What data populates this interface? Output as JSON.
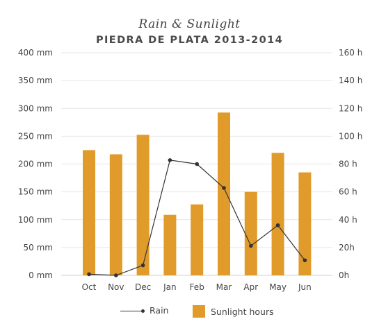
{
  "chart_data": {
    "type": "bar",
    "title": "Rain & Sunlight",
    "subtitle": "PIEDRA DE PLATA 2013-2014",
    "categories": [
      "Oct",
      "Nov",
      "Dec",
      "Jan",
      "Feb",
      "Mar",
      "Apr",
      "May",
      "Jun"
    ],
    "series": [
      {
        "name": "Sunlight hours",
        "kind": "bar",
        "axis": "right",
        "unit": "h",
        "color": "#e09b2b",
        "values": [
          90,
          87,
          101,
          43.5,
          51,
          117,
          60,
          88,
          74
        ]
      },
      {
        "name": "Rain",
        "kind": "line",
        "axis": "left",
        "unit": "mm",
        "color": "#333333",
        "values": [
          2,
          0,
          18,
          207,
          200,
          157,
          53,
          90,
          27
        ]
      }
    ],
    "y_left": {
      "min": 0,
      "max": 400,
      "ticks": [
        "0 mm",
        "50 mm",
        "100 mm",
        "150 mm",
        "200 mm",
        "250 mm",
        "300 mm",
        "350 mm",
        "400 mm"
      ]
    },
    "y_right": {
      "min": 0,
      "max": 160,
      "ticks": [
        "0h",
        "20h",
        "40 h",
        "60 h",
        "80 h",
        "100 h",
        "120 h",
        "140 h",
        "160 h"
      ]
    },
    "grid": true,
    "legend_position": "bottom"
  },
  "legend": {
    "rain_label": "Rain",
    "sun_label": "Sunlight hours"
  }
}
